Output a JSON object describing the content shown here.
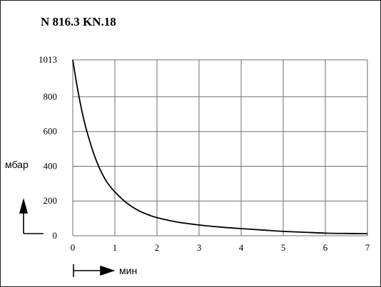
{
  "chart_data": {
    "type": "line",
    "title": "N 816.3 KN.18",
    "xlabel": "мин",
    "ylabel": "мбар",
    "x_ticks": [
      "0",
      "1",
      "2",
      "3",
      "4",
      "5",
      "6",
      "7"
    ],
    "y_ticks": [
      "0",
      "200",
      "400",
      "600",
      "800",
      "1013"
    ],
    "y_tick_values": [
      0,
      200,
      400,
      600,
      800,
      1013
    ],
    "xlim": [
      0,
      7
    ],
    "ylim": [
      0,
      1013
    ],
    "grid": true,
    "series": [
      {
        "x": [
          0,
          0.1,
          0.2,
          0.3,
          0.4,
          0.5,
          0.6,
          0.7,
          0.8,
          0.9,
          1.0,
          1.2,
          1.4,
          1.6,
          1.8,
          2.0,
          2.5,
          3.0,
          3.5,
          4.0,
          4.5,
          5.0,
          5.5,
          6.0,
          6.5,
          7.0
        ],
        "y": [
          1013,
          865,
          738,
          632,
          547,
          472,
          408,
          356,
          313,
          280,
          252,
          205,
          168,
          140,
          120,
          104,
          78,
          62,
          50,
          41,
          33,
          25,
          20,
          15,
          13,
          12
        ],
        "color": "#000000"
      }
    ]
  }
}
